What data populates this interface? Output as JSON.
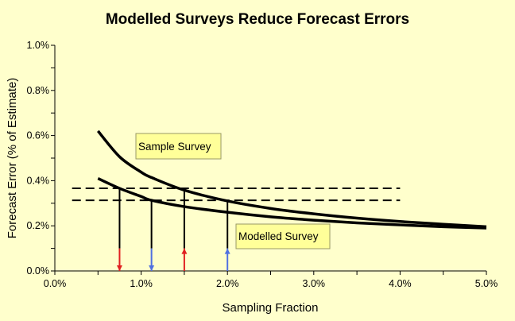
{
  "chart_data": {
    "type": "line",
    "title": "Modelled Surveys Reduce Forecast Errors",
    "xlabel": "Sampling Fraction",
    "ylabel": "Forecast Error (% of Estimate)",
    "xlim": [
      0,
      5.0
    ],
    "ylim": [
      0,
      1.0
    ],
    "x_ticks": [
      "0.0%",
      "1.0%",
      "2.0%",
      "3.0%",
      "4.0%",
      "5.0%"
    ],
    "y_ticks": [
      "0.0%",
      "0.2%",
      "0.4%",
      "0.6%",
      "0.8%",
      "1.0%"
    ],
    "grid": false,
    "background": "#FFFFCC",
    "series": [
      {
        "name": "Sample Survey",
        "x": [
          0.5,
          0.75,
          1.0,
          1.12,
          1.5,
          2.0,
          2.5,
          3.0,
          3.5,
          4.0,
          4.5,
          5.0
        ],
        "y": [
          0.62,
          0.506,
          0.438,
          0.414,
          0.358,
          0.31,
          0.277,
          0.253,
          0.234,
          0.219,
          0.207,
          0.196
        ],
        "color": "#000000"
      },
      {
        "name": "Modelled Survey",
        "x": [
          0.5,
          0.75,
          1.0,
          1.12,
          1.5,
          2.0,
          2.5,
          3.0,
          3.5,
          4.0,
          4.5,
          5.0
        ],
        "y": [
          0.41,
          0.366,
          0.33,
          0.313,
          0.285,
          0.26,
          0.24,
          0.225,
          0.213,
          0.204,
          0.196,
          0.19
        ],
        "color": "#000000"
      }
    ],
    "reference_lines": [
      {
        "y": 0.366,
        "x_from": 0.2,
        "x_to": 4.0,
        "style": "dashed"
      },
      {
        "y": 0.313,
        "x_from": 0.2,
        "x_to": 4.0,
        "style": "dashed"
      }
    ],
    "drop_lines": [
      {
        "x": 0.75,
        "y": 0.366,
        "arrow": "down",
        "color": "#E02020"
      },
      {
        "x": 1.12,
        "y": 0.313,
        "arrow": "down",
        "color": "#5070E0"
      },
      {
        "x": 1.5,
        "y": 0.366,
        "arrow": "up",
        "color": "#E02020"
      },
      {
        "x": 2.0,
        "y": 0.313,
        "arrow": "up",
        "color": "#5070E0"
      }
    ],
    "annotations": [
      {
        "text": "Sample Survey",
        "fill": "#FFFF99"
      },
      {
        "text": "Modelled Survey",
        "fill": "#FFFF99"
      }
    ]
  }
}
